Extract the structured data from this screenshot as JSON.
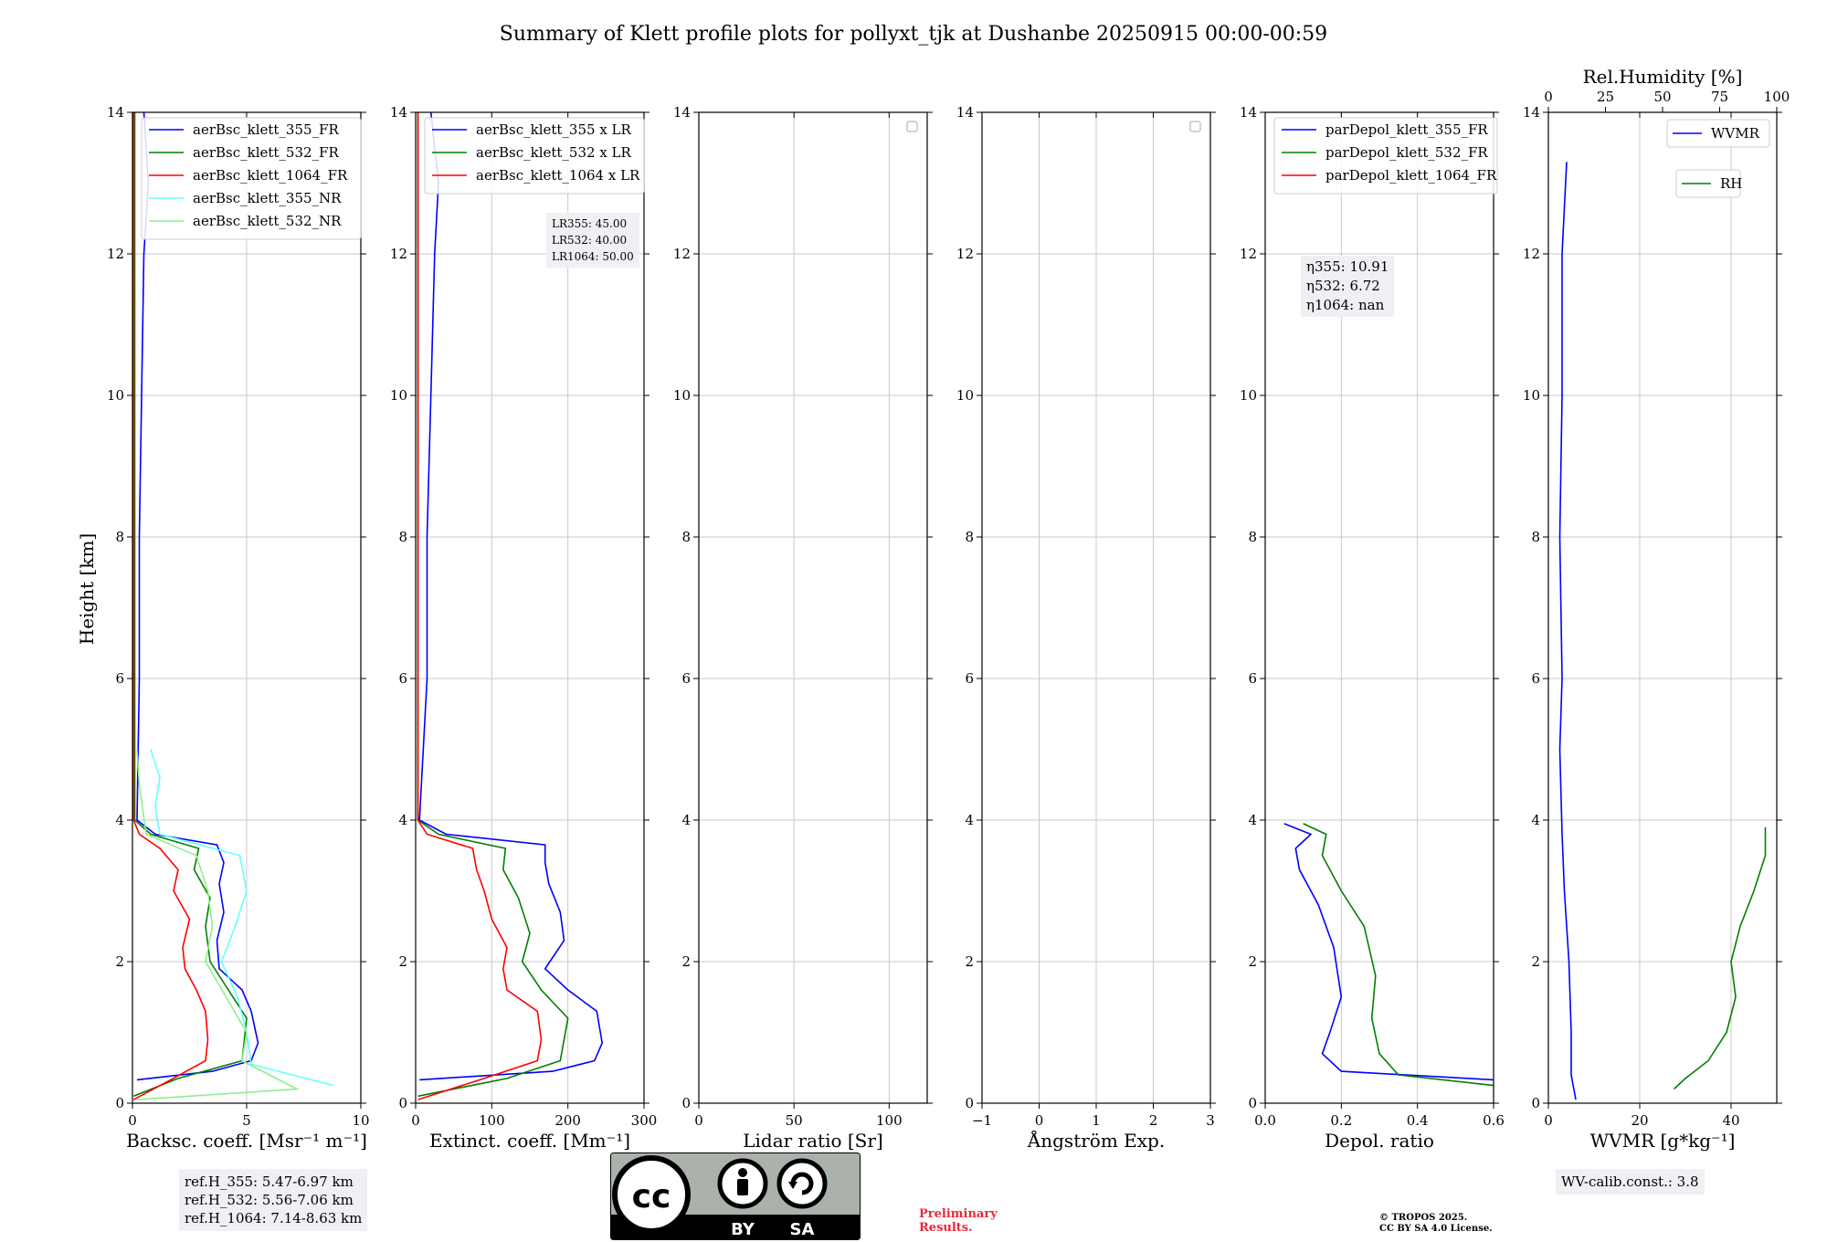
{
  "title": "Summary of Klett profile plots for pollyxt_tjk at Dushanbe 20250915 00:00-00:59",
  "y_label": "Height [km]",
  "y_ticks": [
    "0",
    "2",
    "4",
    "6",
    "8",
    "10",
    "12",
    "14"
  ],
  "colors": {
    "blue": "#0000ff",
    "green": "#008000",
    "red": "#ff0000",
    "cyan": "#66ffff",
    "lightgreen": "#90ee90"
  },
  "chart_data": [
    {
      "type": "line",
      "id": "bsc",
      "xlabel": "Backsc. coeff. [Msr⁻¹ m⁻¹]",
      "xlim": [
        0,
        10
      ],
      "xticks": [
        "0",
        "5",
        "10"
      ],
      "xtick_values": [
        0,
        5,
        10
      ],
      "ylim": [
        0,
        14
      ],
      "legend": [
        "aerBsc_klett_355_FR",
        "aerBsc_klett_532_FR",
        "aerBsc_klett_1064_FR",
        "aerBsc_klett_355_NR",
        "aerBsc_klett_532_NR"
      ],
      "series": [
        {
          "name": "aerBsc_klett_355_FR",
          "color": "blue",
          "points": [
            [
              0.2,
              0.33
            ],
            [
              3.5,
              0.45
            ],
            [
              5.2,
              0.6
            ],
            [
              5.5,
              0.85
            ],
            [
              5.2,
              1.3
            ],
            [
              4.8,
              1.6
            ],
            [
              3.8,
              1.9
            ],
            [
              3.7,
              2.3
            ],
            [
              4.0,
              2.7
            ],
            [
              3.8,
              3.1
            ],
            [
              4.0,
              3.4
            ],
            [
              3.7,
              3.65
            ],
            [
              1.0,
              3.8
            ],
            [
              0.2,
              4.0
            ],
            [
              0.3,
              6
            ],
            [
              0.3,
              8
            ],
            [
              0.4,
              10
            ],
            [
              0.5,
              12
            ],
            [
              0.7,
              13
            ],
            [
              0.5,
              14
            ]
          ]
        },
        {
          "name": "aerBsc_klett_532_FR",
          "color": "green",
          "points": [
            [
              0.05,
              0.1
            ],
            [
              2,
              0.35
            ],
            [
              4.8,
              0.6
            ],
            [
              5.0,
              1.2
            ],
            [
              4.2,
              1.6
            ],
            [
              3.4,
              2.0
            ],
            [
              3.2,
              2.5
            ],
            [
              3.4,
              2.9
            ],
            [
              2.7,
              3.3
            ],
            [
              2.9,
              3.6
            ],
            [
              0.8,
              3.8
            ],
            [
              0.1,
              4.0
            ],
            [
              0.1,
              8
            ],
            [
              0.1,
              14
            ]
          ]
        },
        {
          "name": "aerBsc_klett_1064_FR",
          "color": "red",
          "points": [
            [
              0.05,
              0.05
            ],
            [
              1.5,
              0.3
            ],
            [
              3.2,
              0.6
            ],
            [
              3.3,
              0.9
            ],
            [
              3.2,
              1.3
            ],
            [
              2.8,
              1.6
            ],
            [
              2.3,
              1.9
            ],
            [
              2.2,
              2.2
            ],
            [
              2.5,
              2.6
            ],
            [
              1.8,
              3.0
            ],
            [
              2.0,
              3.3
            ],
            [
              1.2,
              3.6
            ],
            [
              0.3,
              3.8
            ],
            [
              0.05,
              4.0
            ],
            [
              0.05,
              14
            ]
          ]
        },
        {
          "name": "aerBsc_klett_355_NR",
          "color": "cyan",
          "points": [
            [
              8.8,
              0.25
            ],
            [
              5.2,
              0.55
            ],
            [
              5.0,
              1.0
            ],
            [
              4.6,
              1.5
            ],
            [
              3.9,
              2.0
            ],
            [
              4.5,
              2.5
            ],
            [
              5.0,
              3.0
            ],
            [
              4.7,
              3.5
            ],
            [
              1.2,
              3.8
            ],
            [
              1.0,
              4.2
            ],
            [
              1.2,
              4.6
            ],
            [
              0.8,
              5.0
            ]
          ]
        },
        {
          "name": "aerBsc_klett_532_NR",
          "color": "lightgreen",
          "points": [
            [
              0.2,
              0.05
            ],
            [
              7.2,
              0.2
            ],
            [
              4.8,
              0.6
            ],
            [
              5.0,
              1.0
            ],
            [
              4.1,
              1.5
            ],
            [
              3.2,
              2.0
            ],
            [
              3.5,
              2.5
            ],
            [
              3.3,
              3.0
            ],
            [
              2.8,
              3.5
            ],
            [
              0.6,
              3.8
            ],
            [
              0.3,
              4.5
            ],
            [
              0.2,
              5.0
            ]
          ]
        }
      ]
    },
    {
      "type": "line",
      "id": "ext",
      "xlabel": "Extinct. coeff. [Mm⁻¹]",
      "xlim": [
        0,
        300
      ],
      "xticks": [
        "0",
        "100",
        "200",
        "300"
      ],
      "xtick_values": [
        0,
        100,
        200,
        300
      ],
      "ylim": [
        0,
        14
      ],
      "legend": [
        "aerBsc_klett_355 x LR",
        "aerBsc_klett_532 x LR",
        "aerBsc_klett_1064 x LR"
      ],
      "series": [
        {
          "name": "aerBsc_klett_355 x LR",
          "color": "blue",
          "points": [
            [
              5,
              0.33
            ],
            [
              180,
              0.45
            ],
            [
              235,
              0.6
            ],
            [
              245,
              0.85
            ],
            [
              238,
              1.3
            ],
            [
              200,
              1.6
            ],
            [
              170,
              1.9
            ],
            [
              195,
              2.3
            ],
            [
              190,
              2.7
            ],
            [
              175,
              3.1
            ],
            [
              170,
              3.4
            ],
            [
              170,
              3.65
            ],
            [
              40,
              3.8
            ],
            [
              5,
              4.0
            ],
            [
              15,
              6
            ],
            [
              15,
              8
            ],
            [
              20,
              10
            ],
            [
              25,
              12
            ],
            [
              30,
              13
            ],
            [
              20,
              14
            ]
          ]
        },
        {
          "name": "aerBsc_klett_532 x LR",
          "color": "green",
          "points": [
            [
              3,
              0.1
            ],
            [
              120,
              0.35
            ],
            [
              190,
              0.6
            ],
            [
              200,
              1.2
            ],
            [
              165,
              1.6
            ],
            [
              140,
              2.0
            ],
            [
              150,
              2.4
            ],
            [
              135,
              2.9
            ],
            [
              115,
              3.3
            ],
            [
              118,
              3.6
            ],
            [
              30,
              3.8
            ],
            [
              3,
              4.0
            ],
            [
              3,
              8
            ],
            [
              3,
              14
            ]
          ]
        },
        {
          "name": "aerBsc_klett_1064 x LR",
          "color": "red",
          "points": [
            [
              3,
              0.05
            ],
            [
              90,
              0.35
            ],
            [
              160,
              0.6
            ],
            [
              165,
              0.9
            ],
            [
              160,
              1.3
            ],
            [
              120,
              1.6
            ],
            [
              115,
              1.9
            ],
            [
              120,
              2.2
            ],
            [
              100,
              2.6
            ],
            [
              90,
              3.0
            ],
            [
              80,
              3.3
            ],
            [
              75,
              3.6
            ],
            [
              15,
              3.8
            ],
            [
              3,
              4.0
            ],
            [
              3,
              14
            ]
          ]
        }
      ]
    },
    {
      "type": "line",
      "id": "lr",
      "xlabel": "Lidar ratio [Sr]",
      "xlim": [
        0,
        120
      ],
      "xticks": [
        "0",
        "50",
        "100"
      ],
      "xtick_values": [
        0,
        50,
        100
      ],
      "ylim": [
        0,
        14
      ],
      "series": []
    },
    {
      "type": "line",
      "id": "ang",
      "xlabel": "Ångström Exp.",
      "xlim": [
        -1,
        3
      ],
      "xticks": [
        "−1",
        "0",
        "1",
        "2",
        "3"
      ],
      "xtick_values": [
        -1,
        0,
        1,
        2,
        3
      ],
      "ylim": [
        0,
        14
      ],
      "series": []
    },
    {
      "type": "line",
      "id": "depol",
      "xlabel": "Depol. ratio",
      "xlim": [
        0,
        0.6
      ],
      "xticks": [
        "0.0",
        "0.2",
        "0.4",
        "0.6"
      ],
      "xtick_values": [
        0,
        0.2,
        0.4,
        0.6
      ],
      "ylim": [
        0,
        14
      ],
      "legend": [
        "parDepol_klett_355_FR",
        "parDepol_klett_532_FR",
        "parDepol_klett_1064_FR"
      ],
      "series": [
        {
          "name": "parDepol_klett_355_FR",
          "color": "blue",
          "points": [
            [
              0.6,
              0.33
            ],
            [
              0.2,
              0.45
            ],
            [
              0.15,
              0.7
            ],
            [
              0.17,
              1.0
            ],
            [
              0.2,
              1.5
            ],
            [
              0.18,
              2.2
            ],
            [
              0.14,
              2.8
            ],
            [
              0.09,
              3.3
            ],
            [
              0.08,
              3.6
            ],
            [
              0.12,
              3.8
            ],
            [
              0.05,
              3.95
            ]
          ]
        },
        {
          "name": "parDepol_klett_532_FR",
          "color": "green",
          "points": [
            [
              0.6,
              0.25
            ],
            [
              0.35,
              0.4
            ],
            [
              0.3,
              0.7
            ],
            [
              0.28,
              1.2
            ],
            [
              0.29,
              1.8
            ],
            [
              0.26,
              2.5
            ],
            [
              0.2,
              3.0
            ],
            [
              0.15,
              3.5
            ],
            [
              0.16,
              3.8
            ],
            [
              0.1,
              3.95
            ]
          ]
        }
      ]
    },
    {
      "type": "line",
      "id": "wv",
      "xlabel": "WVMR [g*kg⁻¹]",
      "xlim": [
        0,
        50
      ],
      "xticks": [
        "0",
        "20",
        "40"
      ],
      "xtick_values": [
        0,
        20,
        40
      ],
      "ylim": [
        0,
        14
      ],
      "top_axis": {
        "label": "Rel.Humidity [%]",
        "xlim": [
          0,
          100
        ],
        "xticks": [
          "0",
          "25",
          "50",
          "75",
          "100"
        ],
        "xtick_values": [
          0,
          25,
          50,
          75,
          100
        ]
      },
      "legend": [
        "WVMR",
        "RH"
      ],
      "series": [
        {
          "name": "WVMR",
          "color": "blue",
          "points": [
            [
              6,
              0.05
            ],
            [
              5,
              0.4
            ],
            [
              5,
              1.0
            ],
            [
              4.5,
              2.0
            ],
            [
              3.5,
              3.0
            ],
            [
              3,
              3.8
            ],
            [
              2.5,
              5
            ],
            [
              3,
              6
            ],
            [
              2.5,
              8
            ],
            [
              3,
              10
            ],
            [
              3,
              12
            ],
            [
              4,
              13.3
            ]
          ]
        },
        {
          "name": "RH",
          "color": "green",
          "points": [
            [
              55,
              0.2
            ],
            [
              60,
              0.35
            ],
            [
              70,
              0.6
            ],
            [
              78,
              1.0
            ],
            [
              82,
              1.5
            ],
            [
              80,
              2.0
            ],
            [
              84,
              2.5
            ],
            [
              90,
              3.0
            ],
            [
              95,
              3.5
            ],
            [
              95,
              3.9
            ]
          ]
        }
      ]
    }
  ],
  "annotations": {
    "lr_lines": [
      "LR355: 45.00",
      "LR532: 40.00",
      "LR1064: 50.00"
    ],
    "eta_lines": [
      "η355: 10.91",
      "η532: 6.72",
      "η1064: nan"
    ],
    "ref_lines": [
      "ref.H_355: 5.47-6.97 km",
      "ref.H_532: 5.56-7.06 km",
      "ref.H_1064: 7.14-8.63 km"
    ],
    "wv_calib": "WV-calib.const.: 3.8",
    "preliminary": [
      "Preliminary",
      "Results."
    ],
    "copyright": [
      "© TROPOS 2025.",
      "CC BY SA 4.0 License."
    ],
    "badge": {
      "by": "BY",
      "sa": "SA"
    }
  }
}
